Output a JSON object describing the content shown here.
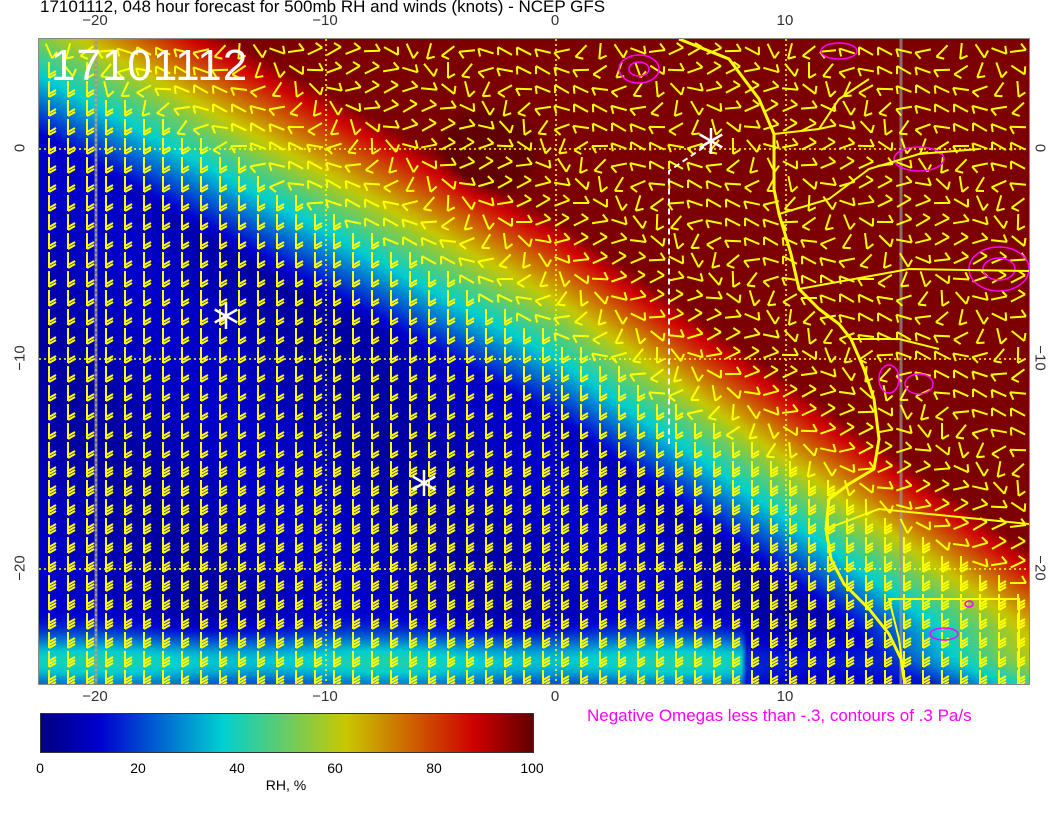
{
  "title": "17101112, 048 hour forecast for 500mb RH and winds (knots) - NCEP GFS",
  "map": {
    "timestamp": "17101112",
    "lon_ticks": [
      "−20",
      "−10",
      "0",
      "10"
    ],
    "lat_ticks": [
      "0",
      "−10",
      "−20"
    ],
    "omega_note": "Negative Omegas less than -.3, contours of .3 Pa/s",
    "colors": {
      "coastline": "#ffff00",
      "wind_barbs": "#ffff00",
      "omega_contours": "#ff00ff",
      "markers": "#ffffff"
    }
  },
  "colorbar": {
    "label": "RH, %",
    "ticks": [
      "0",
      "20",
      "40",
      "60",
      "80",
      "100"
    ],
    "stops": [
      "#000080",
      "#0000d0",
      "#00d0d0",
      "#c8c800",
      "#d00000",
      "#600000"
    ]
  }
}
